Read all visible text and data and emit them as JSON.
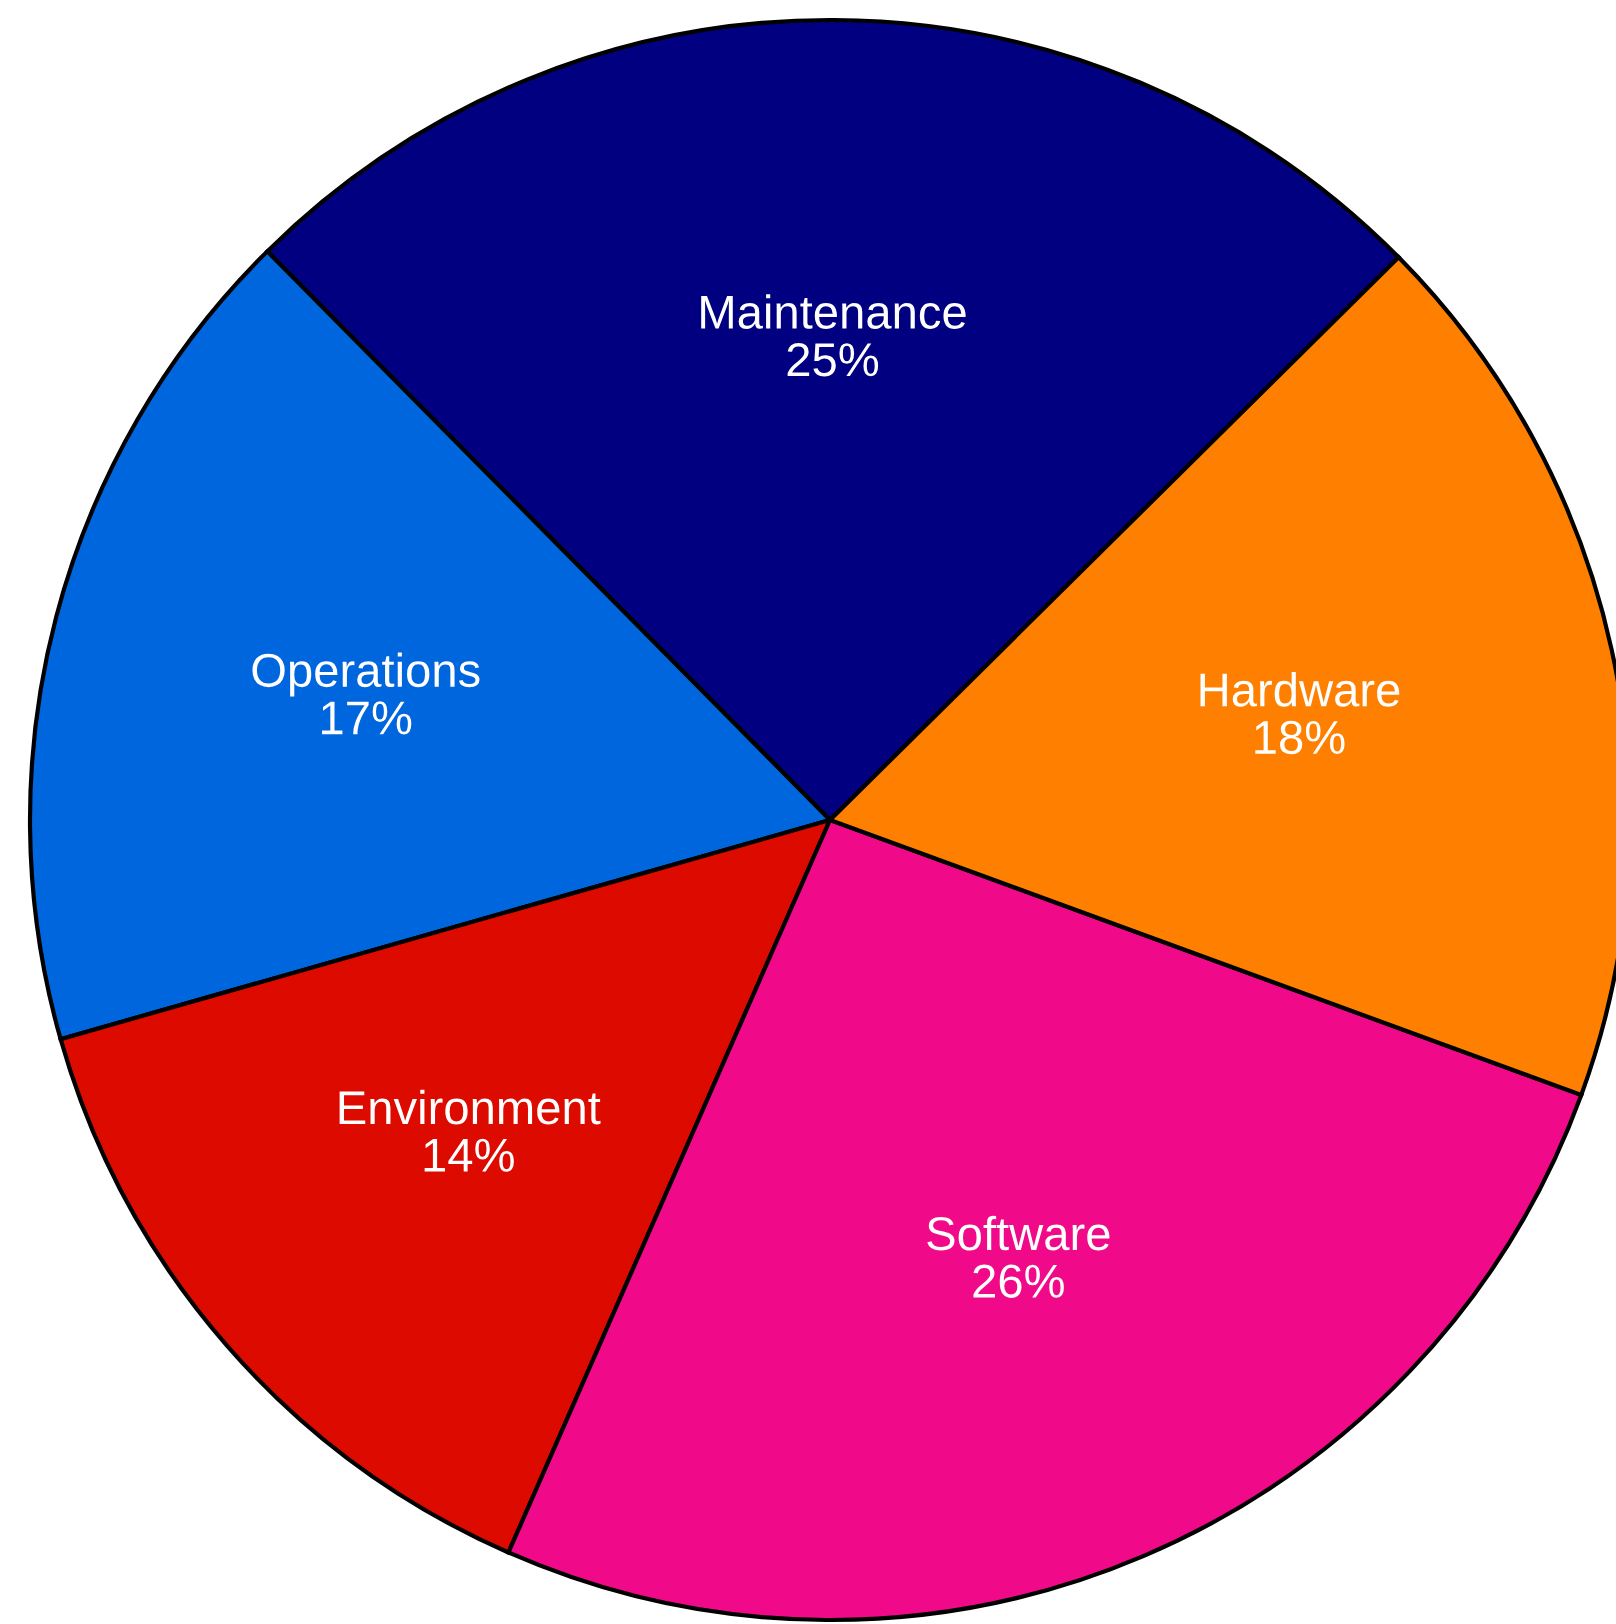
{
  "chart_data": {
    "type": "pie",
    "categories": [
      "Maintenance",
      "Operations",
      "Environment",
      "Software",
      "Hardware"
    ],
    "values": [
      25,
      17,
      14,
      26,
      18
    ],
    "value_labels": [
      "25%",
      "17%",
      "14%",
      "26%",
      "18%"
    ],
    "colors": [
      "#000080",
      "#0066dd",
      "#dd0a00",
      "#f00a8a",
      "#ff8000"
    ],
    "legend": false
  }
}
